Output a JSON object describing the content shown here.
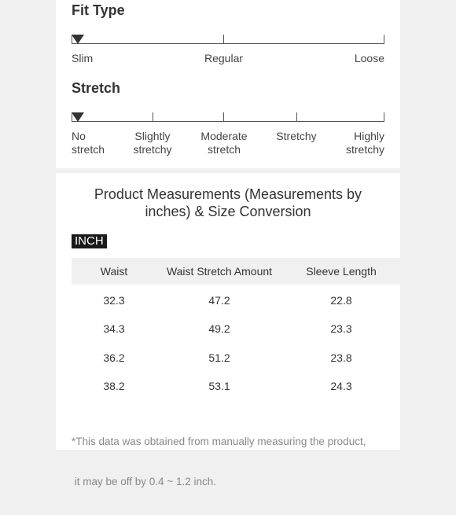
{
  "fit_type": {
    "heading": "Fit Type",
    "labels": [
      "Slim",
      "Regular",
      "Loose"
    ]
  },
  "stretch": {
    "heading": "Stretch",
    "labels": [
      "No\nstretch",
      "Slightly\nstretchy",
      "Moderate\nstretch",
      "Stretchy",
      "Highly\nstretchy"
    ]
  },
  "measurements": {
    "title_line1": "Product Measurements (Measurements by",
    "title_line2": "inches) & Size Conversion",
    "unit_badge": "INCH",
    "columns": [
      "Waist",
      "Waist Stretch Amount",
      "Sleeve Length"
    ],
    "rows": [
      [
        "32.3",
        "47.2",
        "22.8"
      ],
      [
        "34.3",
        "49.2",
        "23.3"
      ],
      [
        "36.2",
        "51.2",
        "23.8"
      ],
      [
        "38.2",
        "53.1",
        "24.3"
      ]
    ],
    "note_line1": "*This data was obtained from manually measuring the product,",
    "note_line2": " it may be off by 0.4 ~ 1.2 inch."
  }
}
